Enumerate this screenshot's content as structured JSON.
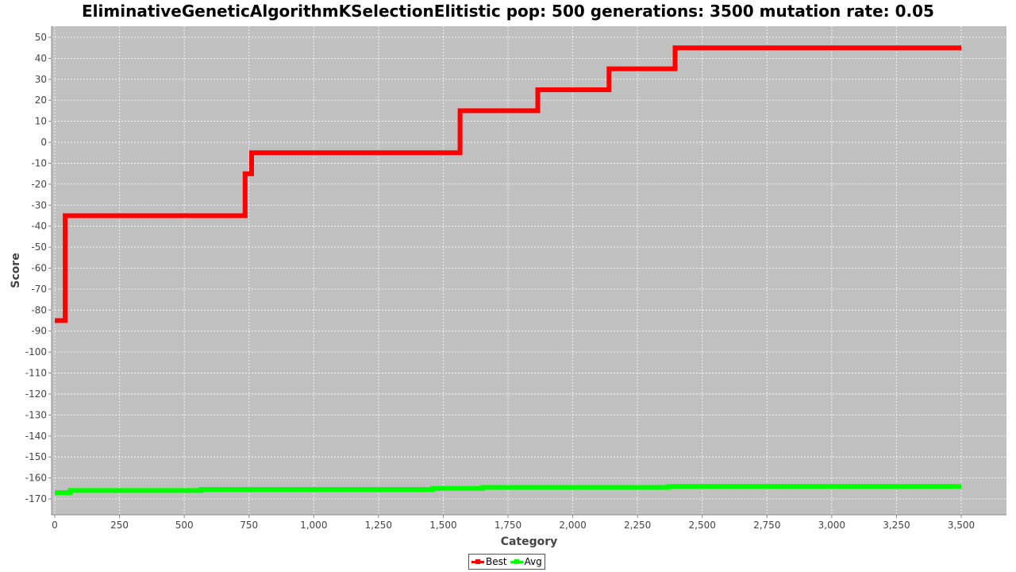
{
  "chart_data": {
    "type": "line",
    "title": "EliminativeGeneticAlgorithmKSelectionElitistic pop: 500 generations: 3500 mutation rate: 0.05",
    "xlabel": "Category",
    "ylabel": "Score",
    "xlim": [
      0,
      3500
    ],
    "ylim": [
      -175,
      50
    ],
    "x_ticks": [
      0,
      250,
      500,
      750,
      1000,
      1250,
      1500,
      1750,
      2000,
      2250,
      2500,
      2750,
      3000,
      3250,
      3500
    ],
    "x_tick_labels": [
      "0",
      "250",
      "500",
      "750",
      "1,000",
      "1,250",
      "1,500",
      "1,750",
      "2,000",
      "2,250",
      "2,500",
      "2,750",
      "3,000",
      "3,250",
      "3,500"
    ],
    "y_ticks": [
      50,
      40,
      30,
      20,
      10,
      0,
      -10,
      -20,
      -30,
      -40,
      -50,
      -60,
      -70,
      -80,
      -90,
      -100,
      -110,
      -120,
      -130,
      -140,
      -150,
      -160,
      -170
    ],
    "y_tick_labels": [
      "50",
      "40",
      "30",
      "20",
      "10",
      "0",
      "-10",
      "-20",
      "-30",
      "-40",
      "-50",
      "-60",
      "-70",
      "-80",
      "-90",
      "-100",
      "-110",
      "-120",
      "-130",
      "-140",
      "-150",
      "-160",
      "-170"
    ],
    "grid": true,
    "legend_position": "bottom-center",
    "plot_background": "#c0c0c0",
    "series": [
      {
        "name": "Best",
        "color": "#ff0000",
        "points": [
          [
            0,
            -85
          ],
          [
            40,
            -85
          ],
          [
            40,
            -35
          ],
          [
            735,
            -35
          ],
          [
            735,
            -15
          ],
          [
            760,
            -15
          ],
          [
            760,
            -5
          ],
          [
            1565,
            -5
          ],
          [
            1565,
            15
          ],
          [
            1865,
            15
          ],
          [
            1865,
            25
          ],
          [
            2140,
            25
          ],
          [
            2140,
            35
          ],
          [
            2395,
            35
          ],
          [
            2395,
            45
          ],
          [
            3500,
            45
          ]
        ]
      },
      {
        "name": "Avg",
        "color": "#00ff00",
        "points": [
          [
            0,
            -167
          ],
          [
            60,
            -167
          ],
          [
            60,
            -166
          ],
          [
            565,
            -166
          ],
          [
            565,
            -165.5
          ],
          [
            1460,
            -165.5
          ],
          [
            1460,
            -165
          ],
          [
            1650,
            -165
          ],
          [
            1650,
            -164.5
          ],
          [
            2370,
            -164.5
          ],
          [
            2370,
            -164
          ],
          [
            3500,
            -164
          ]
        ]
      }
    ]
  }
}
